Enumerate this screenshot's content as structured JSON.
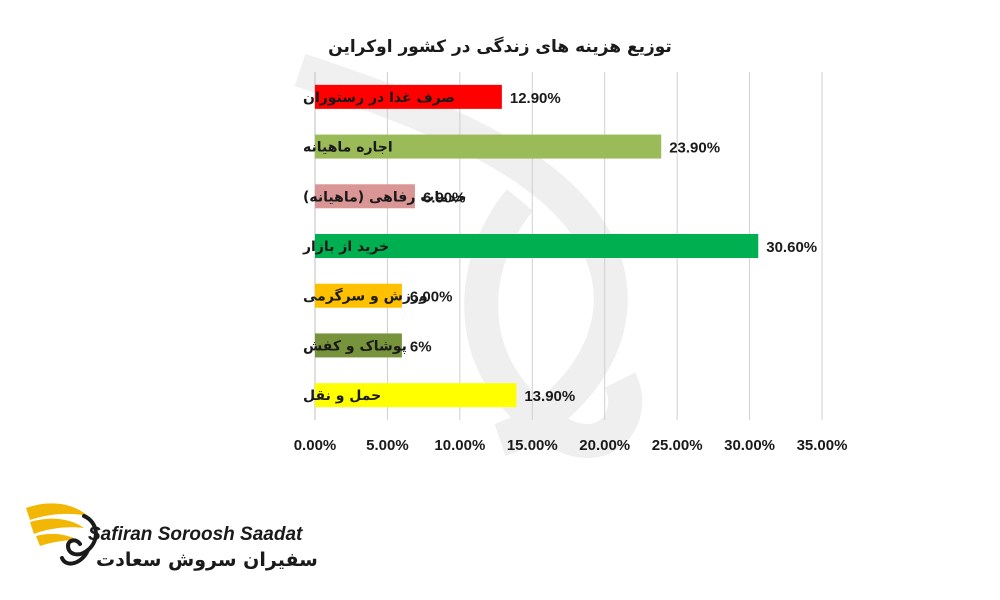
{
  "chart_data": {
    "type": "bar",
    "orientation": "horizontal",
    "title": "توزیع هزینه های زندگی در کشور اوکراین",
    "categories": [
      "صرف غذا در رستوران",
      "اجاره ماهیانه",
      "خدمات رفاهی (ماهیانه)",
      "خرید از بازار",
      "ورزش و سرگرمی",
      "پوشاک و کفش",
      "حمل و نقل"
    ],
    "values": [
      12.9,
      23.9,
      6.9,
      30.6,
      6.0,
      6.0,
      13.9
    ],
    "data_labels": [
      "12.90%",
      "23.90%",
      "6.90%",
      "30.60%",
      "6.00%",
      "6%",
      "13.90%"
    ],
    "colors": [
      "#ff0000",
      "#9bbb59",
      "#d99694",
      "#00b050",
      "#ffc000",
      "#77933c",
      "#ffff00"
    ],
    "xlim": [
      0,
      35
    ],
    "x_ticks": [
      0,
      5,
      10,
      15,
      20,
      25,
      30,
      35
    ],
    "x_tick_labels": [
      "0.00%",
      "5.00%",
      "10.00%",
      "15.00%",
      "20.00%",
      "25.00%",
      "30.00%",
      "35.00%"
    ],
    "grid": true,
    "legend": "none"
  },
  "brand": {
    "name_en": "Safiran Soroosh Saadat",
    "name_fa": "سفیران سروش سعادت",
    "accent": "#f2b705",
    "icon": "swan-wings-logo-icon"
  }
}
